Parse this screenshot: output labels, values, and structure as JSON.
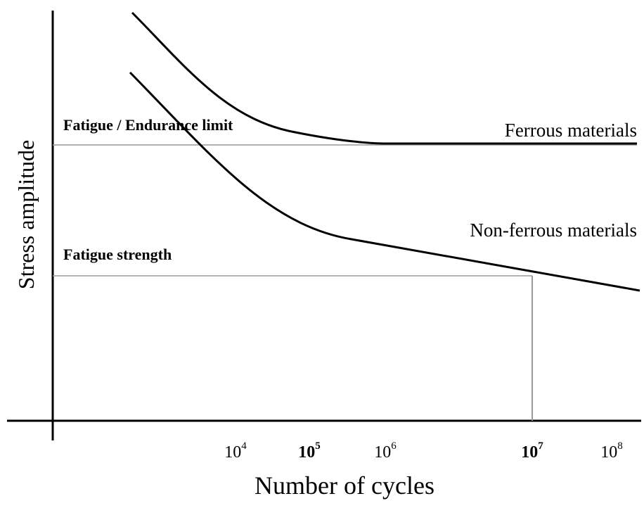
{
  "axes": {
    "y_label": "Stress amplitude",
    "x_label": "Number of cycles",
    "x_ticks": [
      {
        "base": "10",
        "exponent": "4"
      },
      {
        "base": "10",
        "exponent": "5"
      },
      {
        "base": "10",
        "exponent": "6"
      },
      {
        "base": "10",
        "exponent": "7"
      },
      {
        "base": "10",
        "exponent": "8"
      }
    ]
  },
  "annotations": {
    "endurance_limit": "Fatigue / Endurance limit",
    "fatigue_strength": "Fatigue strength"
  },
  "curves": {
    "ferrous": "Ferrous materials",
    "non_ferrous": "Non-ferrous materials"
  }
}
